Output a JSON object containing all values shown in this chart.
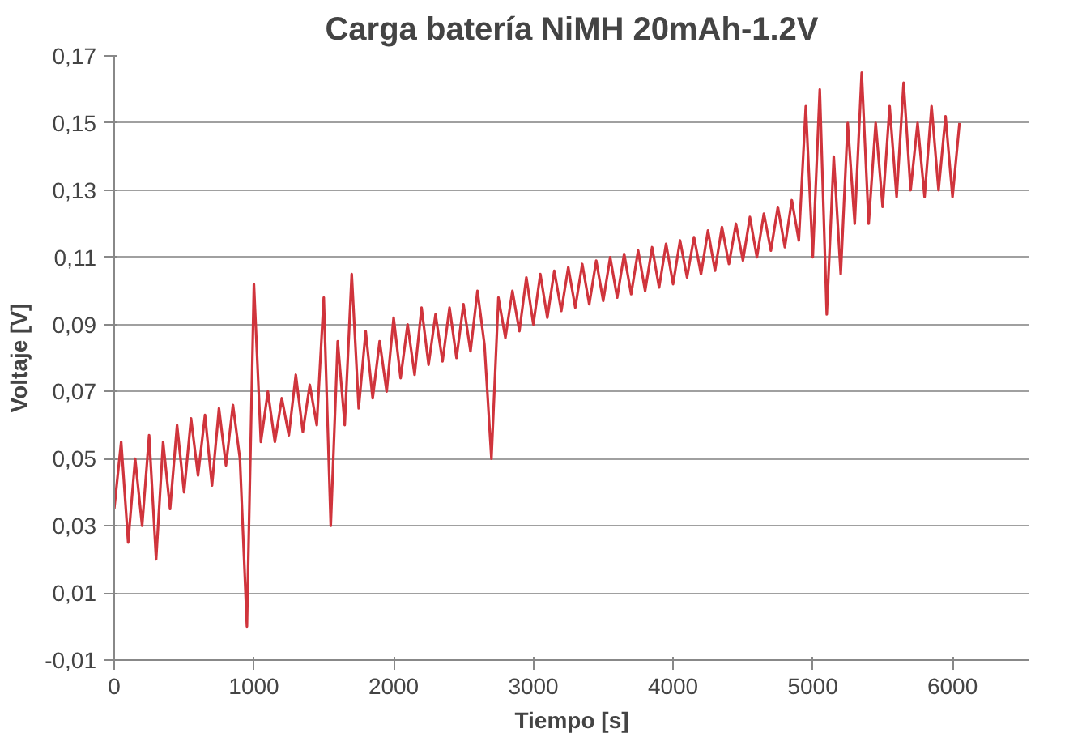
{
  "chart_data": {
    "type": "line",
    "title": "Carga batería NiMH 20mAh-1.2V",
    "xlabel": "Tiempo [s]",
    "ylabel": "Voltaje [V]",
    "xlim": [
      0,
      6550
    ],
    "xticks": [
      0,
      1000,
      2000,
      3000,
      4000,
      5000,
      6000
    ],
    "ylim": [
      -0.01,
      0.17
    ],
    "yticks": [
      {
        "value": -0.01,
        "label": "-0,01"
      },
      {
        "value": 0.01,
        "label": "0,01"
      },
      {
        "value": 0.03,
        "label": "0,03"
      },
      {
        "value": 0.05,
        "label": "0,05"
      },
      {
        "value": 0.07,
        "label": "0,07"
      },
      {
        "value": 0.09,
        "label": "0,09"
      },
      {
        "value": 0.11,
        "label": "0,11"
      },
      {
        "value": 0.13,
        "label": "0,13"
      },
      {
        "value": 0.15,
        "label": "0,15"
      },
      {
        "value": 0.17,
        "label": "0,17"
      }
    ],
    "grid": "y",
    "marker": "none",
    "line_style": "solid",
    "series": [
      {
        "color": "#d0343c",
        "x": [
          0,
          50,
          100,
          150,
          200,
          250,
          300,
          350,
          400,
          450,
          500,
          550,
          600,
          650,
          700,
          750,
          800,
          850,
          900,
          950,
          1000,
          1050,
          1100,
          1150,
          1200,
          1250,
          1300,
          1350,
          1400,
          1450,
          1500,
          1550,
          1600,
          1650,
          1700,
          1750,
          1800,
          1850,
          1900,
          1950,
          2000,
          2050,
          2100,
          2150,
          2200,
          2250,
          2300,
          2350,
          2400,
          2450,
          2500,
          2550,
          2600,
          2650,
          2700,
          2750,
          2800,
          2850,
          2900,
          2950,
          3000,
          3050,
          3100,
          3150,
          3200,
          3250,
          3300,
          3350,
          3400,
          3450,
          3500,
          3550,
          3600,
          3650,
          3700,
          3750,
          3800,
          3850,
          3900,
          3950,
          4000,
          4050,
          4100,
          4150,
          4200,
          4250,
          4300,
          4350,
          4400,
          4450,
          4500,
          4550,
          4600,
          4650,
          4700,
          4750,
          4800,
          4850,
          4900,
          4950,
          5000,
          5050,
          5100,
          5150,
          5200,
          5250,
          5300,
          5350,
          5400,
          5450,
          5500,
          5550,
          5600,
          5650,
          5700,
          5750,
          5800,
          5850,
          5900,
          5950,
          6000,
          6050
        ],
        "values": [
          0.035,
          0.055,
          0.025,
          0.05,
          0.03,
          0.057,
          0.02,
          0.055,
          0.035,
          0.06,
          0.04,
          0.062,
          0.045,
          0.063,
          0.042,
          0.065,
          0.048,
          0.066,
          0.05,
          0.0,
          0.102,
          0.055,
          0.07,
          0.055,
          0.068,
          0.057,
          0.075,
          0.058,
          0.072,
          0.06,
          0.098,
          0.03,
          0.085,
          0.06,
          0.105,
          0.065,
          0.088,
          0.068,
          0.085,
          0.07,
          0.092,
          0.074,
          0.09,
          0.075,
          0.095,
          0.078,
          0.093,
          0.079,
          0.095,
          0.08,
          0.096,
          0.082,
          0.1,
          0.084,
          0.05,
          0.098,
          0.086,
          0.1,
          0.088,
          0.104,
          0.09,
          0.105,
          0.092,
          0.106,
          0.094,
          0.107,
          0.095,
          0.108,
          0.096,
          0.109,
          0.097,
          0.11,
          0.098,
          0.111,
          0.099,
          0.112,
          0.1,
          0.113,
          0.101,
          0.114,
          0.102,
          0.115,
          0.104,
          0.116,
          0.105,
          0.118,
          0.106,
          0.119,
          0.108,
          0.12,
          0.109,
          0.122,
          0.11,
          0.123,
          0.112,
          0.125,
          0.113,
          0.127,
          0.115,
          0.155,
          0.11,
          0.16,
          0.093,
          0.14,
          0.105,
          0.15,
          0.12,
          0.165,
          0.12,
          0.15,
          0.125,
          0.155,
          0.128,
          0.162,
          0.13,
          0.15,
          0.128,
          0.155,
          0.13,
          0.152,
          0.128,
          0.15
        ]
      }
    ]
  }
}
